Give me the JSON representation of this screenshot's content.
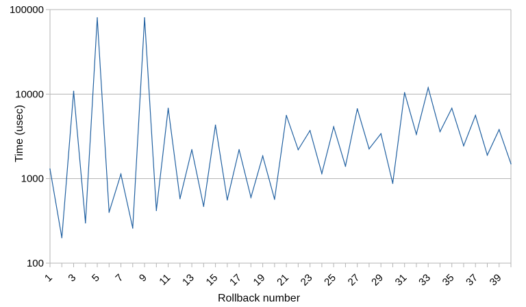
{
  "chart_data": {
    "type": "line",
    "title": "",
    "xlabel": "Rollback number",
    "ylabel": "Time (usec)",
    "yscale": "log",
    "ylim": [
      100,
      100000
    ],
    "xlim": [
      1,
      40
    ],
    "grid": "horizontal major gridlines",
    "legend": "none",
    "y_ticks": [
      "100",
      "1000",
      "10000",
      "100000"
    ],
    "x_ticks": [
      "1",
      "3",
      "5",
      "7",
      "9",
      "11",
      "13",
      "15",
      "17",
      "19",
      "21",
      "23",
      "25",
      "27",
      "29",
      "31",
      "33",
      "35",
      "37",
      "39"
    ],
    "series": [
      {
        "color": "#1f5fa0",
        "x": [
          1,
          2,
          3,
          4,
          5,
          6,
          7,
          8,
          9,
          10,
          11,
          12,
          13,
          14,
          15,
          16,
          17,
          18,
          19,
          20,
          21,
          22,
          23,
          24,
          25,
          26,
          27,
          28,
          29,
          30,
          31,
          32,
          33,
          34,
          35,
          36,
          37,
          38,
          39,
          40
        ],
        "values": [
          1300,
          200,
          10800,
          300,
          80000,
          400,
          1130,
          260,
          80000,
          420,
          6800,
          580,
          2200,
          470,
          4300,
          560,
          2200,
          600,
          1850,
          570,
          5600,
          2200,
          3700,
          1150,
          4100,
          1400,
          6700,
          2250,
          3400,
          880,
          10400,
          3350,
          11900,
          3600,
          6800,
          2450,
          5600,
          1900,
          3800,
          1500
        ]
      }
    ]
  }
}
